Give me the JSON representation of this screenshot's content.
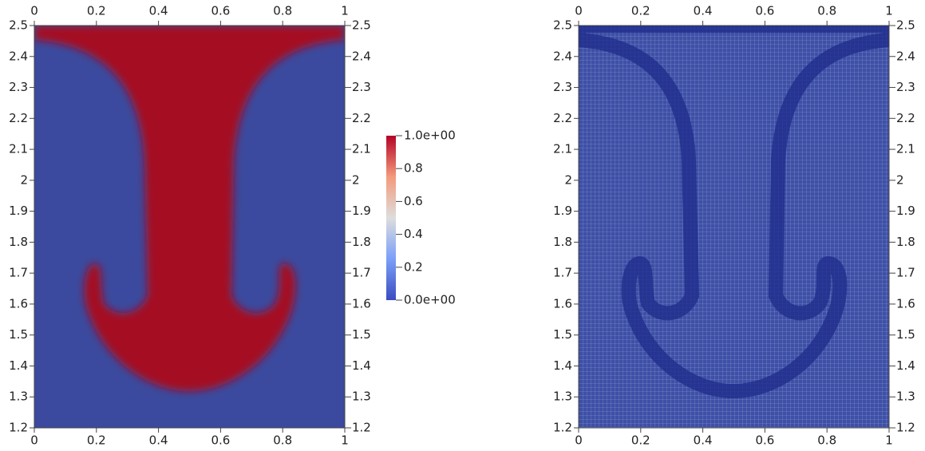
{
  "chart_data": [
    {
      "type": "field",
      "xlim": [
        0,
        1
      ],
      "xticks": [
        0,
        0.2,
        0.4,
        0.6,
        0.8,
        1
      ],
      "ylim": [
        1.2,
        2.5
      ],
      "yticks": [
        1.2,
        1.3,
        1.4,
        1.5,
        1.6,
        1.7,
        1.8,
        1.9,
        2,
        2.1,
        2.2,
        2.3,
        2.4,
        2.5
      ],
      "colorbar": {
        "lim": [
          0,
          1
        ],
        "ticks": [
          {
            "value": 1,
            "label": "1.0e+00"
          },
          0.8,
          0.6,
          0.4,
          0.2,
          {
            "value": 0,
            "label": "0.0e+00"
          }
        ]
      }
    },
    {
      "type": "mesh",
      "xlim": [
        0,
        1
      ],
      "xticks": [
        0,
        0.2,
        0.4,
        0.6,
        0.8,
        1
      ],
      "ylim": [
        1.2,
        2.5
      ],
      "yticks": [
        1.2,
        1.3,
        1.4,
        1.5,
        1.6,
        1.7,
        1.8,
        1.9,
        2,
        2.1,
        2.2,
        2.3,
        2.4,
        2.5
      ]
    }
  ]
}
